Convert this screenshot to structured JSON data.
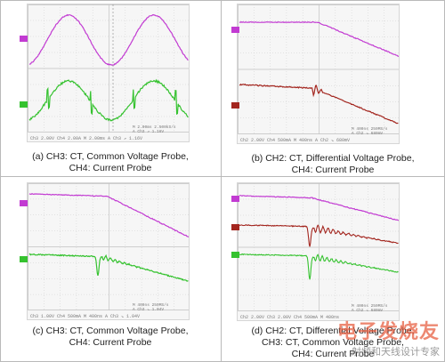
{
  "colors": {
    "magenta": "#c23bd2",
    "green": "#35c22f",
    "darkred": "#a3261f",
    "grid": "#cfcfcf",
    "frame": "#b9b9b9"
  },
  "panels": [
    {
      "id": "a",
      "caption_lines": [
        "(a)  CH3: CT, Common Voltage Probe,",
        "CH4: Current Probe"
      ],
      "status": "Ch3  2.00V   Ch4  2.00A   M 2.00ms  A Ch3  ↗  1.16V",
      "readout": [
        "M 2.00ms  2.500kS/s",
        "A  Ch3  ↗  1.16V"
      ],
      "marker_colors": [
        "#c23bd2",
        "#35c22f"
      ]
    },
    {
      "id": "b",
      "caption_lines": [
        "(b)  CH2: CT, Differential Voltage Probe,",
        "CH4: Current Probe"
      ],
      "status": "Ch2  2.00V   Ch4  500mA  M 400ns  A Ch2  ↘  680mV",
      "readout": [
        "M 400ns  250MS/s",
        "A  Ch2  ↘  680mV"
      ],
      "marker_colors": [
        "#c23bd2",
        "#a3261f"
      ]
    },
    {
      "id": "c",
      "caption_lines": [
        "(c)  CH3: CT, Common Voltage Probe,",
        "CH4: Current Probe"
      ],
      "status": "Ch3  1.00V   Ch4  500mA  M 400ns  A Ch3  ↘  1.04V",
      "readout": [
        "M 400ns  250MS/s",
        "A  Ch3  ↘  1.04V"
      ],
      "marker_colors": [
        "#c23bd2",
        "#35c22f"
      ]
    },
    {
      "id": "d",
      "caption_lines": [
        "(d)  CH2: CT, Differential Voltage Probe,",
        "CH3: CT, Common Voltage Probe,",
        "CH4: Current Probe"
      ],
      "status": "Ch2  2.00V   Ch3  2.00V   Ch4  500mA  M 400ns",
      "readout": [
        "M 400ns  250MS/s",
        "A  Ch2  ↘  680mV"
      ],
      "marker_colors": [
        "#c23bd2",
        "#a3261f",
        "#35c22f"
      ]
    }
  ],
  "watermark": {
    "main": "电子发烧友",
    "sub": "射频和天线设计专家"
  }
}
